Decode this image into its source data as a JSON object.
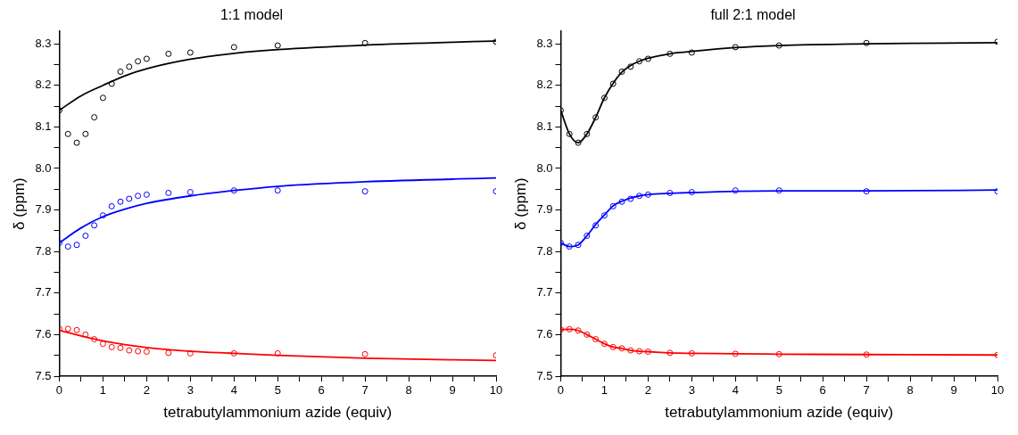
{
  "chart_data": [
    {
      "type": "scatter",
      "title": "1:1 model",
      "xlabel": "tetrabutylammonium azide (equiv)",
      "ylabel": "δ (ppm)",
      "grid": false,
      "legend": false,
      "xlim": [
        0,
        10
      ],
      "xticks": [
        0,
        {
          "value": 0.5,
          "label": null
        },
        1,
        {
          "value": 1.5,
          "label": null
        },
        2,
        {
          "value": 2.5,
          "label": null
        },
        3,
        {
          "value": 3.5,
          "label": null
        },
        4,
        {
          "value": 4.5,
          "label": null
        },
        5,
        {
          "value": 5.5,
          "label": null
        },
        6,
        {
          "value": 6.5,
          "label": null
        },
        7,
        {
          "value": 7.5,
          "label": null
        },
        8,
        {
          "value": 8.5,
          "label": null
        },
        9,
        {
          "value": 9.5,
          "label": null
        },
        10
      ],
      "ylim": [
        7.5,
        8.33
      ],
      "yticks": [
        7.5,
        {
          "value": 7.55,
          "label": null
        },
        7.6,
        {
          "value": 7.65,
          "label": null
        },
        7.7,
        {
          "value": 7.75,
          "label": null
        },
        7.8,
        {
          "value": 7.85,
          "label": null
        },
        7.9,
        {
          "value": 7.95,
          "label": null
        },
        {
          "value": 8,
          "label": "8.0"
        },
        {
          "value": 8.05,
          "label": null
        },
        8.1,
        {
          "value": 8.15,
          "label": null
        },
        8.2,
        {
          "value": 8.25,
          "label": null
        },
        8.3
      ],
      "series": [
        {
          "type": "scatter",
          "marker": "circle",
          "color": "#000000",
          "x": [
            0,
            0.2,
            0.4,
            0.6,
            0.8,
            1,
            1.2,
            1.4,
            1.6,
            1.8,
            2,
            2.5,
            3,
            4,
            5,
            7,
            10
          ],
          "values": [
            8.14,
            8.083,
            8.062,
            8.083,
            8.123,
            8.17,
            8.204,
            8.233,
            8.245,
            8.258,
            8.264,
            8.276,
            8.279,
            8.292,
            8.296,
            8.302,
            8.305
          ]
        },
        {
          "type": "line",
          "marker": "none",
          "color": "#000000",
          "x": [
            0,
            0.5,
            1,
            1.5,
            2,
            3,
            4,
            5,
            7,
            10
          ],
          "values": [
            8.14,
            8.175,
            8.2,
            8.223,
            8.24,
            8.263,
            8.277,
            8.286,
            8.297,
            8.307
          ]
        },
        {
          "type": "scatter",
          "marker": "circle",
          "color": "#0000ff",
          "x": [
            0,
            0.2,
            0.4,
            0.6,
            0.8,
            1,
            1.2,
            1.4,
            1.6,
            1.8,
            2,
            2.5,
            3,
            4,
            5,
            7,
            10
          ],
          "values": [
            7.821,
            7.812,
            7.816,
            7.838,
            7.863,
            7.887,
            7.909,
            7.92,
            7.927,
            7.934,
            7.937,
            7.941,
            7.943,
            7.947,
            7.947,
            7.945,
            7.945
          ]
        },
        {
          "type": "line",
          "marker": "none",
          "color": "#0000ff",
          "x": [
            0,
            0.5,
            1,
            1.5,
            2,
            3,
            4,
            5,
            7,
            10
          ],
          "values": [
            7.821,
            7.857,
            7.884,
            7.902,
            7.916,
            7.934,
            7.947,
            7.957,
            7.968,
            7.977
          ]
        },
        {
          "type": "scatter",
          "marker": "circle",
          "color": "#ff0000",
          "x": [
            0,
            0.2,
            0.4,
            0.6,
            0.8,
            1,
            1.2,
            1.4,
            1.6,
            1.8,
            2,
            2.5,
            3,
            4,
            5,
            7,
            10
          ],
          "values": [
            7.614,
            7.614,
            7.611,
            7.6,
            7.589,
            7.578,
            7.57,
            7.568,
            7.562,
            7.56,
            7.559,
            7.556,
            7.555,
            7.555,
            7.555,
            7.553,
            7.55
          ]
        },
        {
          "type": "line",
          "marker": "none",
          "color": "#ff0000",
          "x": [
            0,
            0.5,
            1,
            1.5,
            2,
            3,
            4,
            5,
            7,
            10
          ],
          "values": [
            7.61,
            7.597,
            7.585,
            7.576,
            7.569,
            7.56,
            7.555,
            7.55,
            7.543,
            7.538
          ]
        }
      ]
    },
    {
      "type": "scatter",
      "title": "full 2:1 model",
      "xlabel": "tetrabutylammonium azide (equiv)",
      "ylabel": "δ (ppm)",
      "grid": false,
      "legend": false,
      "xlim": [
        0,
        10
      ],
      "xticks": [
        0,
        {
          "value": 0.5,
          "label": null
        },
        1,
        {
          "value": 1.5,
          "label": null
        },
        2,
        {
          "value": 2.5,
          "label": null
        },
        3,
        {
          "value": 3.5,
          "label": null
        },
        4,
        {
          "value": 4.5,
          "label": null
        },
        5,
        {
          "value": 5.5,
          "label": null
        },
        6,
        {
          "value": 6.5,
          "label": null
        },
        7,
        {
          "value": 7.5,
          "label": null
        },
        8,
        {
          "value": 8.5,
          "label": null
        },
        9,
        {
          "value": 9.5,
          "label": null
        },
        10
      ],
      "ylim": [
        7.5,
        8.33
      ],
      "yticks": [
        7.5,
        {
          "value": 7.55,
          "label": null
        },
        7.6,
        {
          "value": 7.65,
          "label": null
        },
        7.7,
        {
          "value": 7.75,
          "label": null
        },
        7.8,
        {
          "value": 7.85,
          "label": null
        },
        7.9,
        {
          "value": 7.95,
          "label": null
        },
        {
          "value": 8,
          "label": "8.0"
        },
        {
          "value": 8.05,
          "label": null
        },
        8.1,
        {
          "value": 8.15,
          "label": null
        },
        8.2,
        {
          "value": 8.25,
          "label": null
        },
        8.3
      ],
      "series": [
        {
          "type": "scatter",
          "marker": "circle",
          "color": "#000000",
          "x": [
            0,
            0.2,
            0.4,
            0.6,
            0.8,
            1,
            1.2,
            1.4,
            1.6,
            1.8,
            2,
            2.5,
            3,
            4,
            5,
            7,
            10
          ],
          "values": [
            8.14,
            8.083,
            8.062,
            8.083,
            8.123,
            8.17,
            8.204,
            8.233,
            8.245,
            8.258,
            8.264,
            8.276,
            8.279,
            8.292,
            8.296,
            8.302,
            8.305
          ]
        },
        {
          "type": "line",
          "marker": "none",
          "color": "#000000",
          "x": [
            0,
            0.2,
            0.4,
            0.6,
            0.8,
            1,
            1.2,
            1.4,
            1.6,
            1.8,
            2,
            2.5,
            3,
            4,
            5,
            7,
            10
          ],
          "values": [
            8.14,
            8.083,
            8.062,
            8.083,
            8.123,
            8.17,
            8.205,
            8.232,
            8.248,
            8.258,
            8.265,
            8.276,
            8.282,
            8.291,
            8.296,
            8.3,
            8.303
          ]
        },
        {
          "type": "scatter",
          "marker": "circle",
          "color": "#0000ff",
          "x": [
            0,
            0.2,
            0.4,
            0.6,
            0.8,
            1,
            1.2,
            1.4,
            1.6,
            1.8,
            2,
            2.5,
            3,
            4,
            5,
            7,
            10
          ],
          "values": [
            7.821,
            7.812,
            7.816,
            7.838,
            7.863,
            7.887,
            7.909,
            7.92,
            7.927,
            7.934,
            7.937,
            7.941,
            7.943,
            7.947,
            7.947,
            7.945,
            7.945
          ]
        },
        {
          "type": "line",
          "marker": "none",
          "color": "#0000ff",
          "x": [
            0,
            0.2,
            0.4,
            0.6,
            0.8,
            1,
            1.2,
            1.4,
            1.6,
            1.8,
            2,
            2.5,
            3,
            4,
            5,
            7,
            10
          ],
          "values": [
            7.821,
            7.812,
            7.816,
            7.838,
            7.865,
            7.888,
            7.91,
            7.921,
            7.929,
            7.934,
            7.937,
            7.94,
            7.942,
            7.945,
            7.946,
            7.946,
            7.948
          ]
        },
        {
          "type": "scatter",
          "marker": "circle",
          "color": "#ff0000",
          "x": [
            0,
            0.2,
            0.4,
            0.6,
            0.8,
            1,
            1.2,
            1.4,
            1.6,
            1.8,
            2,
            2.5,
            3,
            4,
            5,
            7,
            10
          ],
          "values": [
            7.612,
            7.613,
            7.61,
            7.6,
            7.589,
            7.578,
            7.57,
            7.567,
            7.562,
            7.56,
            7.559,
            7.556,
            7.555,
            7.554,
            7.553,
            7.552,
            7.551
          ]
        },
        {
          "type": "line",
          "marker": "none",
          "color": "#ff0000",
          "x": [
            0,
            0.2,
            0.4,
            0.6,
            0.8,
            1,
            1.2,
            1.4,
            1.6,
            1.8,
            2,
            2.5,
            3,
            4,
            5,
            7,
            10
          ],
          "values": [
            7.612,
            7.613,
            7.61,
            7.6,
            7.589,
            7.578,
            7.57,
            7.567,
            7.562,
            7.56,
            7.559,
            7.556,
            7.555,
            7.554,
            7.553,
            7.552,
            7.551
          ]
        }
      ]
    }
  ]
}
